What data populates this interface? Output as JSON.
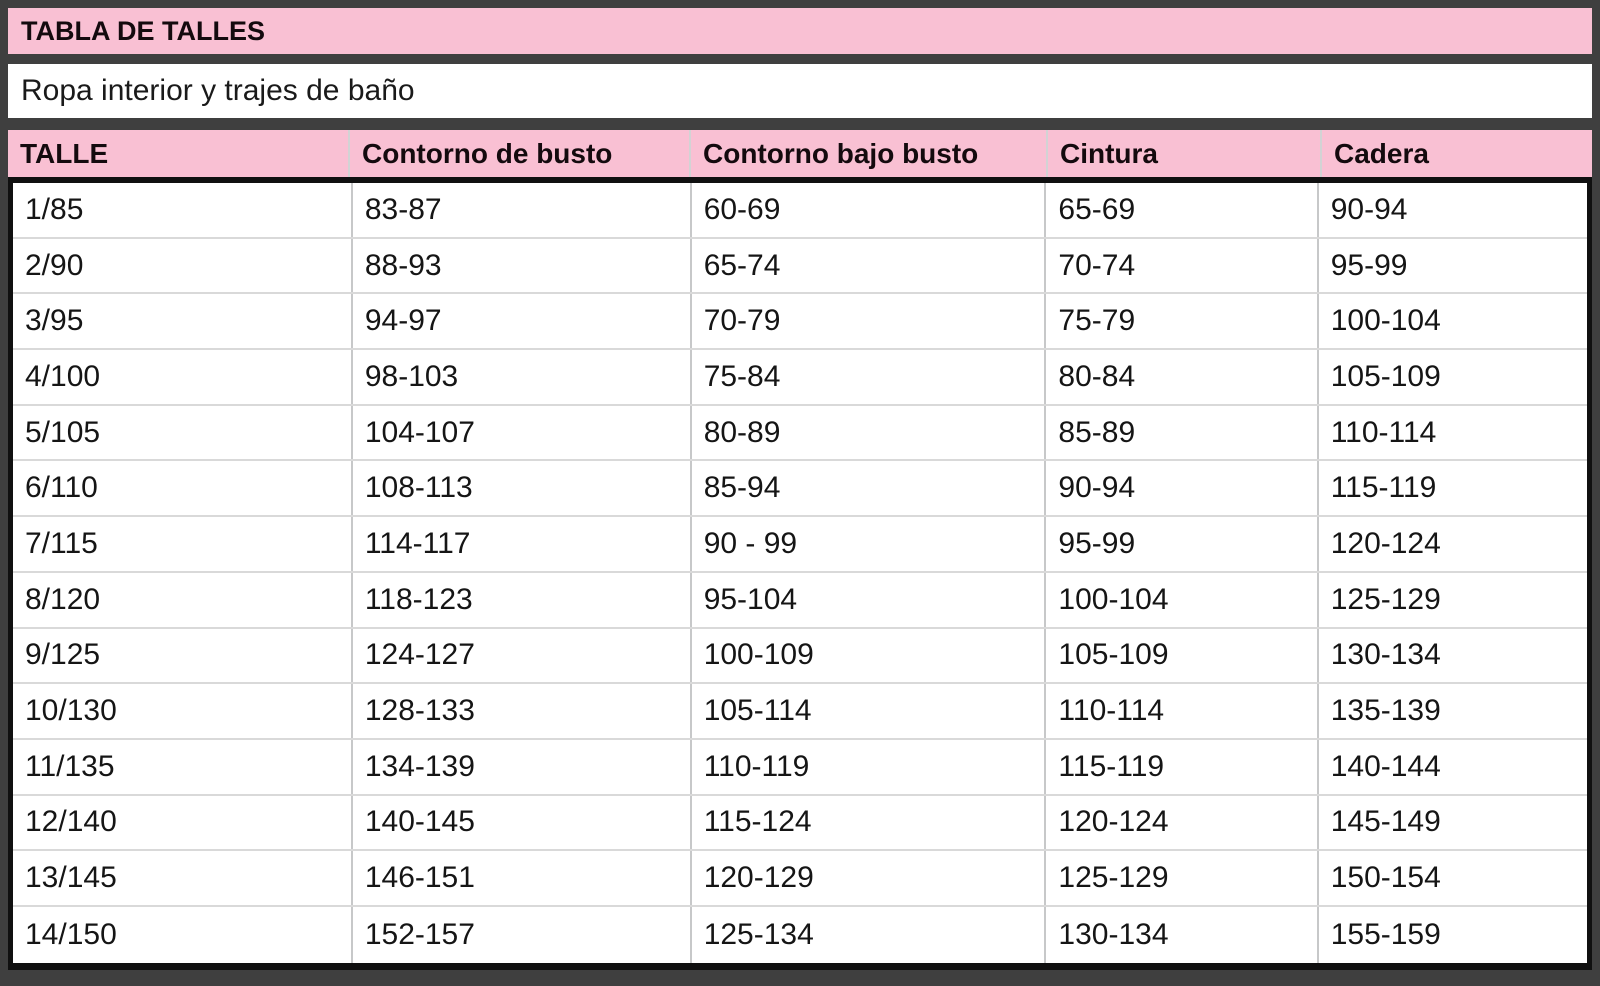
{
  "title_bar": {
    "text": "TABLA DE TALLES"
  },
  "subtitle_bar": {
    "text": "Ropa interior y trajes de baño"
  },
  "table": {
    "columns": [
      "TALLE",
      "Contorno de busto",
      "Contorno bajo busto",
      "Cintura",
      "Cadera"
    ],
    "rows": [
      [
        "1/85",
        "83-87",
        "60-69",
        "65-69",
        "90-94"
      ],
      [
        "2/90",
        "88-93",
        "65-74",
        "70-74",
        "95-99"
      ],
      [
        "3/95",
        "94-97",
        "70-79",
        "75-79",
        "100-104"
      ],
      [
        "4/100",
        "98-103",
        "75-84",
        "80-84",
        "105-109"
      ],
      [
        "5/105",
        "104-107",
        "80-89",
        "85-89",
        "110-114"
      ],
      [
        "6/110",
        "108-113",
        "85-94",
        "90-94",
        "115-119"
      ],
      [
        "7/115",
        "114-117",
        "90 - 99",
        "95-99",
        "120-124"
      ],
      [
        "8/120",
        "118-123",
        "95-104",
        "100-104",
        "125-129"
      ],
      [
        "9/125",
        "124-127",
        "100-109",
        "105-109",
        "130-134"
      ],
      [
        "10/130",
        "128-133",
        "105-114",
        "110-114",
        "135-139"
      ],
      [
        "11/135",
        "134-139",
        "110-119",
        "115-119",
        "140-144"
      ],
      [
        "12/140",
        "140-145",
        "115-124",
        "120-124",
        "145-149"
      ],
      [
        "13/145",
        "146-151",
        "120-129",
        "125-129",
        "150-154"
      ],
      [
        "14/150",
        "152-157",
        "125-134",
        "130-134",
        "155-159"
      ]
    ]
  },
  "colors": {
    "pink": "#f9c0d3",
    "frame": "#3f3f3f",
    "black": "#101010",
    "rowline": "#d9d9d9",
    "colline": "#c7c8c9",
    "headline": "#d2d3d4",
    "ink": "#151515"
  }
}
